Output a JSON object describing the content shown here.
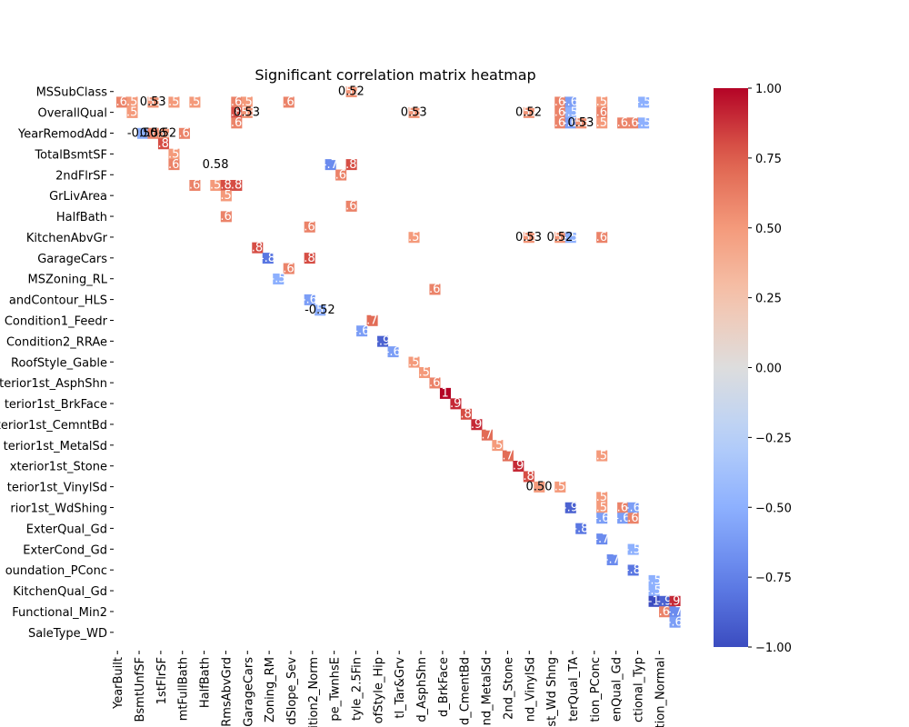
{
  "chart_data": {
    "type": "heatmap",
    "title": "Significant correlation matrix heatmap",
    "colormap": "coolwarm",
    "vmin": -1.0,
    "vmax": 1.0,
    "colorbar_ticks": [
      "1.00",
      "0.75",
      "0.50",
      "0.25",
      "0.00",
      "−0.25",
      "−0.50",
      "−0.75",
      "−1.00"
    ],
    "grid_size": 27,
    "y_tick_labels": [
      "MSSubClass",
      "OverallQual",
      "YearRemodAdd",
      "TotalBsmtSF",
      "2ndFlrSF",
      "GrLivArea",
      "HalfBath",
      "KitchenAbvGr",
      "GarageCars",
      "MSZoning_RL",
      "andContour_HLS",
      "Condition1_Feedr",
      "Condition2_RRAe",
      "RoofStyle_Gable",
      "terior1st_AsphShn",
      "terior1st_BrkFace",
      "terior1st_CemntBd",
      "terior1st_MetalSd",
      "xterior1st_Stone",
      "terior1st_VinylSd",
      "rior1st_WdShing",
      "ExterQual_Gd",
      "ExterCond_Gd",
      "oundation_PConc",
      "KitchenQual_Gd",
      "Functional_Min2",
      "SaleType_WD"
    ],
    "x_tick_labels": [
      "YearBuilt",
      "BsmtUnfSF",
      "1stFlrSF",
      "mtFullBath",
      "HalfBath",
      "RmsAbvGrd",
      "GarageCars",
      "Zoning_RM",
      "dSlope_Sev",
      "dition2_Norm",
      "pe_TwnhsE",
      "tyle_2.5Fin",
      "ofStyle_Hip",
      "tl_Tar&Grv",
      "d_AsphShn",
      "d_BrkFace",
      "d_CmentBd",
      "nd_MetalSd",
      "2nd_Stone",
      "nd_VinylSd",
      "r1st_Wd Shng",
      "terQual_TA",
      "tion_PConc",
      "enQual_Gd",
      "ctional_Typ",
      "tion_Normal"
    ],
    "cells": [
      {
        "row": 0,
        "col": 22,
        "value": 0.52
      },
      {
        "row": 1,
        "col": 0,
        "value": 0.6
      },
      {
        "row": 1,
        "col": 1,
        "value": 0.5
      },
      {
        "row": 1,
        "col": 3,
        "value": 0.53
      },
      {
        "row": 1,
        "col": 5,
        "value": 0.5
      },
      {
        "row": 1,
        "col": 7,
        "value": 0.5
      },
      {
        "row": 1,
        "col": 11,
        "value": 0.6
      },
      {
        "row": 1,
        "col": 12,
        "value": 0.5
      },
      {
        "row": 1,
        "col": 16,
        "value": 0.6
      },
      {
        "row": 1,
        "col": 42,
        "value": 0.6
      },
      {
        "row": 1,
        "col": 43,
        "value": -0.6
      },
      {
        "row": 1,
        "col": 46,
        "value": 0.5
      },
      {
        "row": 1,
        "col": 50,
        "value": -0.5
      },
      {
        "row": 2,
        "col": 1,
        "value": 0.5
      },
      {
        "row": 2,
        "col": 11,
        "value": 0.8
      },
      {
        "row": 2,
        "col": 12,
        "value": 0.53
      },
      {
        "row": 2,
        "col": 28,
        "value": 0.53
      },
      {
        "row": 2,
        "col": 39,
        "value": 0.52
      },
      {
        "row": 2,
        "col": 42,
        "value": 0.6
      },
      {
        "row": 2,
        "col": 43,
        "value": -0.5
      },
      {
        "row": 2,
        "col": 46,
        "value": 0.6
      },
      {
        "row": 3,
        "col": 11,
        "value": 0.6
      },
      {
        "row": 3,
        "col": 42,
        "value": 0.6
      },
      {
        "row": 3,
        "col": 43,
        "value": -0.6
      },
      {
        "row": 3,
        "col": 44,
        "value": 0.53
      },
      {
        "row": 3,
        "col": 46,
        "value": 0.5
      },
      {
        "row": 3,
        "col": 48,
        "value": 0.6
      },
      {
        "row": 3,
        "col": 49,
        "value": 0.6
      },
      {
        "row": 3,
        "col": 50,
        "value": -0.5
      },
      {
        "row": 4,
        "col": 2,
        "value": -0.5
      },
      {
        "row": 4,
        "col": 3,
        "value": 0.6
      },
      {
        "row": 4,
        "col": 4,
        "value": 0.52
      },
      {
        "row": 4,
        "col": 6,
        "value": 0.6
      },
      {
        "row": 5,
        "col": 4,
        "value": 0.8
      },
      {
        "row": 6,
        "col": 5,
        "value": 0.5
      },
      {
        "row": 7,
        "col": 5,
        "value": 0.6
      },
      {
        "row": 7,
        "col": 20,
        "value": -0.7
      },
      {
        "row": 7,
        "col": 22,
        "value": 0.8
      },
      {
        "row": 8,
        "col": 21,
        "value": 0.6
      },
      {
        "row": 9,
        "col": 7,
        "value": 0.6
      },
      {
        "row": 9,
        "col": 9,
        "value": 0.5
      },
      {
        "row": 9,
        "col": 10,
        "value": 0.8
      },
      {
        "row": 9,
        "col": 11,
        "value": 0.8
      },
      {
        "row": 10,
        "col": 10,
        "value": 0.5
      },
      {
        "row": 11,
        "col": 22,
        "value": 0.6
      },
      {
        "row": 12,
        "col": 10,
        "value": 0.6
      },
      {
        "row": 13,
        "col": 18,
        "value": 0.6
      },
      {
        "row": 14,
        "col": 28,
        "value": 0.5
      },
      {
        "row": 14,
        "col": 39,
        "value": 0.53
      },
      {
        "row": 14,
        "col": 42,
        "value": 0.52
      },
      {
        "row": 14,
        "col": 43,
        "value": -0.5
      },
      {
        "row": 14,
        "col": 46,
        "value": 0.6
      },
      {
        "row": 15,
        "col": 13,
        "value": 0.8
      },
      {
        "row": 16,
        "col": 14,
        "value": -0.8
      },
      {
        "row": 16,
        "col": 18,
        "value": 0.8
      },
      {
        "row": 17,
        "col": 16,
        "value": 0.6
      },
      {
        "row": 18,
        "col": 15,
        "value": -0.5
      },
      {
        "row": 19,
        "col": 30,
        "value": 0.6
      },
      {
        "row": 20,
        "col": 18,
        "value": -0.6
      },
      {
        "row": 21,
        "col": 19,
        "value": -0.52
      },
      {
        "row": 22,
        "col": 24,
        "value": 0.7
      },
      {
        "row": 23,
        "col": 23,
        "value": -0.6
      },
      {
        "row": 24,
        "col": 25,
        "value": -0.9
      },
      {
        "row": 25,
        "col": 26,
        "value": -0.6
      },
      {
        "row": 26,
        "col": 28,
        "value": 0.5
      },
      {
        "row": 27,
        "col": 29,
        "value": 0.5
      },
      {
        "row": 28,
        "col": 30,
        "value": 0.6
      },
      {
        "row": 29,
        "col": 31,
        "value": 1.0
      },
      {
        "row": 30,
        "col": 32,
        "value": 0.9
      },
      {
        "row": 31,
        "col": 33,
        "value": 0.8
      },
      {
        "row": 32,
        "col": 34,
        "value": 0.9
      },
      {
        "row": 33,
        "col": 35,
        "value": 0.7
      },
      {
        "row": 34,
        "col": 36,
        "value": 0.5
      },
      {
        "row": 35,
        "col": 37,
        "value": 0.7
      },
      {
        "row": 35,
        "col": 46,
        "value": 0.5
      },
      {
        "row": 36,
        "col": 38,
        "value": 0.9
      },
      {
        "row": 37,
        "col": 39,
        "value": 0.8
      },
      {
        "row": 38,
        "col": 40,
        "value": 0.5
      },
      {
        "row": 38,
        "col": 42,
        "value": 0.5
      },
      {
        "row": 39,
        "col": 46,
        "value": 0.5
      },
      {
        "row": 40,
        "col": 43,
        "value": -0.9
      },
      {
        "row": 40,
        "col": 46,
        "value": 0.5
      },
      {
        "row": 40,
        "col": 48,
        "value": 0.6
      },
      {
        "row": 40,
        "col": 49,
        "value": -0.6
      },
      {
        "row": 41,
        "col": 46,
        "value": -0.6
      },
      {
        "row": 41,
        "col": 48,
        "value": -0.6
      },
      {
        "row": 41,
        "col": 49,
        "value": 0.6
      },
      {
        "row": 42,
        "col": 44,
        "value": -0.8
      },
      {
        "row": 43,
        "col": 46,
        "value": -0.7
      },
      {
        "row": 44,
        "col": 49,
        "value": -0.5
      },
      {
        "row": 45,
        "col": 47,
        "value": -0.7
      },
      {
        "row": 46,
        "col": 49,
        "value": -0.8
      },
      {
        "row": 47,
        "col": 51,
        "value": -0.5
      },
      {
        "row": 48,
        "col": 51,
        "value": -0.5
      },
      {
        "row": 49,
        "col": 51,
        "value": -1.0
      },
      {
        "row": 49,
        "col": 52,
        "value": -0.9
      },
      {
        "row": 49,
        "col": 53,
        "value": 0.9
      },
      {
        "row": 50,
        "col": 52,
        "value": 0.6
      },
      {
        "row": 50,
        "col": 53,
        "value": -0.7
      },
      {
        "row": 51,
        "col": 53,
        "value": -0.6
      }
    ],
    "text_annotations": [
      {
        "row": 0,
        "col": 22,
        "text": "0.52"
      },
      {
        "row": 1,
        "col": 3,
        "text": "0.53"
      },
      {
        "row": 2,
        "col": 12,
        "text": "0.53"
      },
      {
        "row": 2,
        "col": 28,
        "text": "0.53"
      },
      {
        "row": 2,
        "col": 39,
        "text": "0.52"
      },
      {
        "row": 3,
        "col": 44,
        "text": "0.53"
      },
      {
        "row": 4,
        "col": 2,
        "text": "-0.50"
      },
      {
        "row": 4,
        "col": 3,
        "text": "0.56"
      },
      {
        "row": 4,
        "col": 4,
        "text": "0.52"
      },
      {
        "row": 7,
        "col": 9,
        "text": "0.58"
      },
      {
        "row": 14,
        "col": 39,
        "text": "0.53"
      },
      {
        "row": 14,
        "col": 42,
        "text": "0.52"
      },
      {
        "row": 21,
        "col": 19,
        "text": "-0.52"
      },
      {
        "row": 38,
        "col": 40,
        "text": "0.50"
      }
    ]
  }
}
